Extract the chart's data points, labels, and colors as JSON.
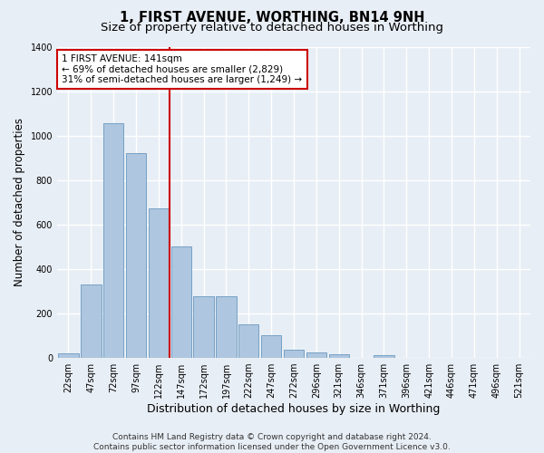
{
  "title": "1, FIRST AVENUE, WORTHING, BN14 9NH",
  "subtitle": "Size of property relative to detached houses in Worthing",
  "xlabel": "Distribution of detached houses by size in Worthing",
  "ylabel": "Number of detached properties",
  "bar_labels": [
    "22sqm",
    "47sqm",
    "72sqm",
    "97sqm",
    "122sqm",
    "147sqm",
    "172sqm",
    "197sqm",
    "222sqm",
    "247sqm",
    "272sqm",
    "296sqm",
    "321sqm",
    "346sqm",
    "371sqm",
    "396sqm",
    "421sqm",
    "446sqm",
    "471sqm",
    "496sqm",
    "521sqm"
  ],
  "bar_values": [
    20,
    330,
    1055,
    920,
    670,
    500,
    275,
    275,
    150,
    100,
    35,
    22,
    15,
    0,
    12,
    0,
    0,
    0,
    0,
    0,
    0
  ],
  "bar_color": "#aec6df",
  "bar_edgecolor": "#6898c0",
  "vline_x": 4.5,
  "annotation_text": "1 FIRST AVENUE: 141sqm\n← 69% of detached houses are smaller (2,829)\n31% of semi-detached houses are larger (1,249) →",
  "annotation_box_color": "#ffffff",
  "annotation_box_edgecolor": "#cc0000",
  "vline_color": "#cc0000",
  "ylim": [
    0,
    1400
  ],
  "yticks": [
    0,
    200,
    400,
    600,
    800,
    1000,
    1200,
    1400
  ],
  "footnote": "Contains HM Land Registry data © Crown copyright and database right 2024.\nContains public sector information licensed under the Open Government Licence v3.0.",
  "background_color": "#e8eef5",
  "plot_background": "#e8eef5",
  "grid_color": "#ffffff",
  "title_fontsize": 10.5,
  "subtitle_fontsize": 9.5,
  "ylabel_fontsize": 8.5,
  "xlabel_fontsize": 9,
  "tick_fontsize": 7,
  "footnote_fontsize": 6.5
}
